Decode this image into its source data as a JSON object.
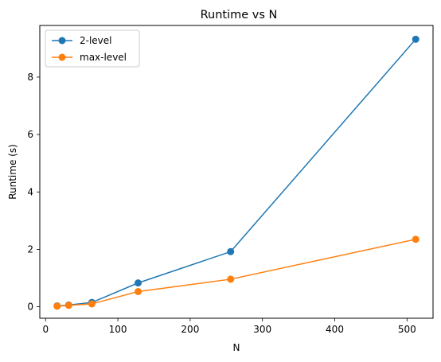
{
  "chart_data": {
    "type": "line",
    "title": "Runtime vs N",
    "xlabel": "N",
    "ylabel": "Runtime (s)",
    "xlim": [
      -8,
      536
    ],
    "ylim": [
      -0.4,
      9.8
    ],
    "xticks": [
      0,
      100,
      200,
      300,
      400,
      500
    ],
    "yticks": [
      0,
      2,
      4,
      6,
      8
    ],
    "legend_position": "top-left",
    "grid": false,
    "series": [
      {
        "name": "2-level",
        "color": "#1f77b4",
        "x": [
          16,
          32,
          64,
          128,
          256,
          512
        ],
        "y": [
          0.03,
          0.06,
          0.15,
          0.83,
          1.92,
          9.32
        ]
      },
      {
        "name": "max-level",
        "color": "#ff7f0e",
        "x": [
          16,
          32,
          64,
          128,
          256,
          512
        ],
        "y": [
          0.02,
          0.05,
          0.1,
          0.53,
          0.96,
          2.35
        ]
      }
    ]
  }
}
